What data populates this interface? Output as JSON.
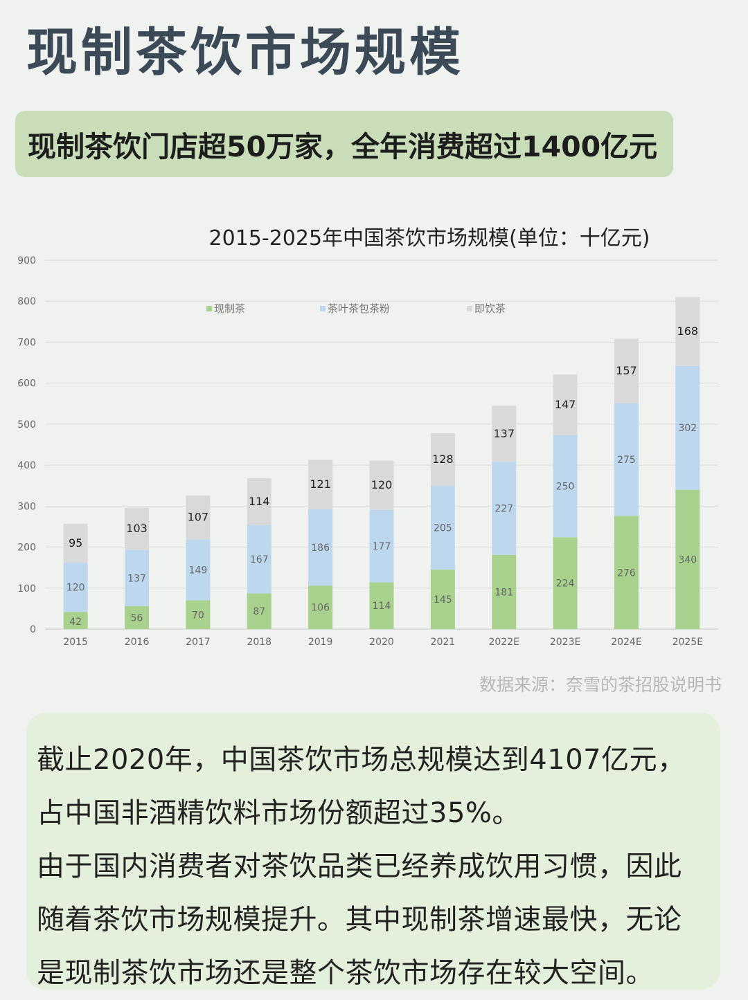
{
  "page_title": "现制茶饮市场规模",
  "headline": "现制茶饮门店超50万家，全年消费超过1400亿元",
  "source": "数据来源：奈雪的茶招股说明书",
  "summary_lines": [
    "截止2020年，中国茶饮市场总规模达到4107亿元，",
    "占中国非酒精饮料市场份额超过35%。",
    "由于国内消费者对茶饮品类已经养成饮用习惯，因此",
    "随着茶饮市场规模提升。其中现制茶增速最快，无论",
    "是现制茶饮市场还是整个茶饮市场存在较大空间。"
  ],
  "colors": {
    "title": "#3c4a58",
    "headline_bg": "#c9ddb8",
    "summary_bg": "#e4efdc",
    "series_fresh": "#a8d18d",
    "series_leaf": "#bdd7ee",
    "series_rtd": "#d9d9d9"
  },
  "chart_data": {
    "type": "bar",
    "stacked": true,
    "title": "2015-2025年中国茶饮市场规模(单位：十亿元)",
    "categories": [
      "2015",
      "2016",
      "2017",
      "2018",
      "2019",
      "2020",
      "2021",
      "2022E",
      "2023E",
      "2024E",
      "2025E"
    ],
    "series": [
      {
        "name": "现制茶",
        "color": "#a8d18d",
        "values": [
          42,
          56,
          70,
          87,
          106,
          114,
          145,
          181,
          224,
          276,
          340
        ]
      },
      {
        "name": "茶叶茶包茶粉",
        "color": "#bdd7ee",
        "values": [
          120,
          137,
          149,
          167,
          186,
          177,
          205,
          227,
          250,
          275,
          302
        ]
      },
      {
        "name": "即饮茶",
        "color": "#d9d9d9",
        "values": [
          95,
          103,
          107,
          114,
          121,
          120,
          128,
          137,
          147,
          157,
          168
        ]
      }
    ],
    "ylim": [
      0,
      900
    ],
    "yticks": [
      0,
      100,
      200,
      300,
      400,
      500,
      600,
      700,
      800,
      900
    ],
    "grid": true,
    "legend": "top-center"
  }
}
